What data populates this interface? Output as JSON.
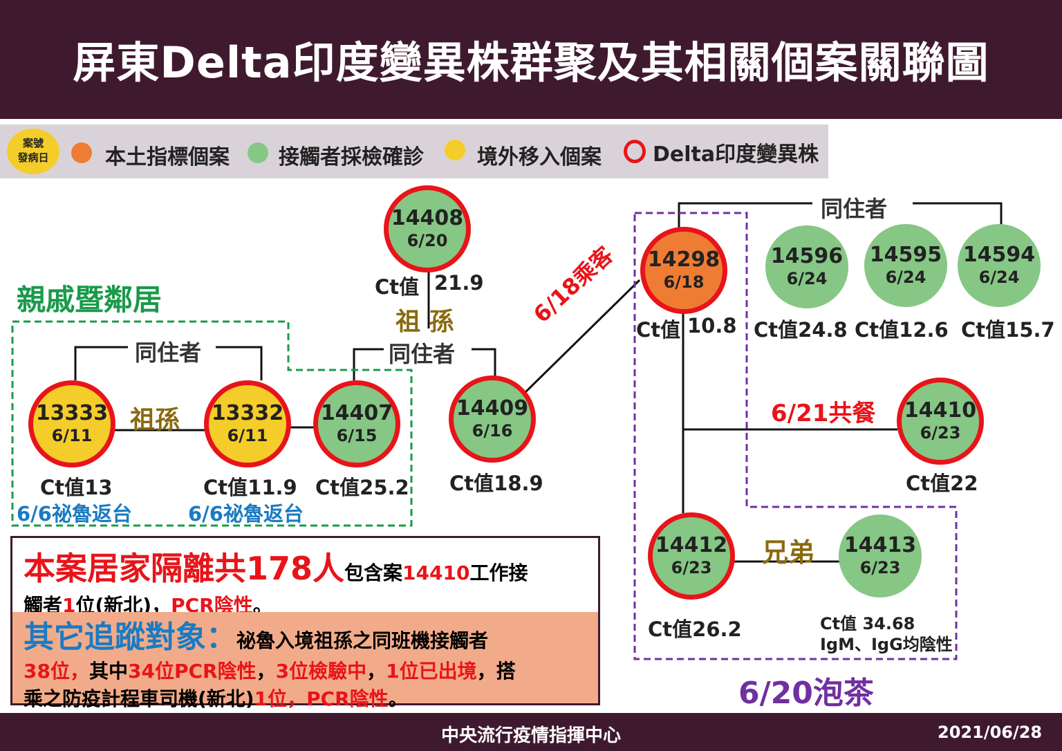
{
  "title": "屏東Delta印度變異株群聚及其相關個案關聯圖",
  "legend": {
    "badge": [
      "案號",
      "發病日"
    ],
    "items": [
      {
        "label": "本土指標個案",
        "color": "#ee7d33"
      },
      {
        "label": "接觸者採檢確診",
        "color": "#86c785"
      },
      {
        "label": "境外移入個案",
        "color": "#f5cd2a"
      },
      {
        "label": "Delta印度變異株",
        "color": "#e8141a"
      }
    ]
  },
  "groups": {
    "relatives": "親戚暨鄰居",
    "tea": "6/20泡茶"
  },
  "nodes": [
    {
      "id": "14408",
      "date": "6/20",
      "ct": "Ct值",
      "ct2": "21.9"
    },
    {
      "id": "14298",
      "date": "6/18",
      "ct": "Ct值",
      "ct2": "10.8"
    },
    {
      "id": "14596",
      "date": "6/24",
      "ct": "Ct值24.8"
    },
    {
      "id": "14595",
      "date": "6/24",
      "ct": "Ct值12.6"
    },
    {
      "id": "14594",
      "date": "6/24",
      "ct": "Ct值15.7"
    },
    {
      "id": "13333",
      "date": "6/11",
      "ct": "Ct值13",
      "note": "6/6祕魯返台"
    },
    {
      "id": "13332",
      "date": "6/11",
      "ct": "Ct值11.9",
      "note": "6/6祕魯返台"
    },
    {
      "id": "14407",
      "date": "6/15",
      "ct": "Ct值25.2"
    },
    {
      "id": "14409",
      "date": "6/16",
      "ct": "Ct值18.9"
    },
    {
      "id": "14410",
      "date": "6/23",
      "ct": "Ct值22"
    },
    {
      "id": "14412",
      "date": "6/23",
      "ct": "Ct值26.2"
    },
    {
      "id": "14413",
      "date": "6/23",
      "ct": "Ct值 34.68",
      "note": "IgM、IgG均陰性"
    }
  ],
  "relations": {
    "grand1": "祖 孫",
    "cohabit1": "同住者",
    "cohabit2": "同住者",
    "cohabit3": "同住者",
    "grand2": "祖孫",
    "taxi": "6/18乘客",
    "meal": "6/21共餐",
    "brothers": "兄弟"
  },
  "info": {
    "l1a": "本案居家隔離共178人",
    "l1b": "包含案",
    "l1c": "14410",
    "l1d": "工作接",
    "l2a": "觸者",
    "l2b": "1",
    "l2c": "位(新北)，",
    "l2d": "PCR陰性",
    "l2e": "。",
    "l3a": "其它追蹤對象：",
    "l3b": "祕魯入境祖孫之同班機接觸者",
    "l4a": "38位，",
    "l4b": "其中",
    "l4c": "34位PCR陰性",
    "l4d": "，",
    "l4e": "3位檢驗中",
    "l4f": "，",
    "l4g": "1位已出境",
    "l4h": "，搭",
    "l5a": "乘之防疫計程車司機(新北)",
    "l5b": "1位，PCR陰性",
    "l5c": "。"
  },
  "footer": {
    "org": "中央流行疫情指揮中心",
    "date": "2021/06/28"
  }
}
